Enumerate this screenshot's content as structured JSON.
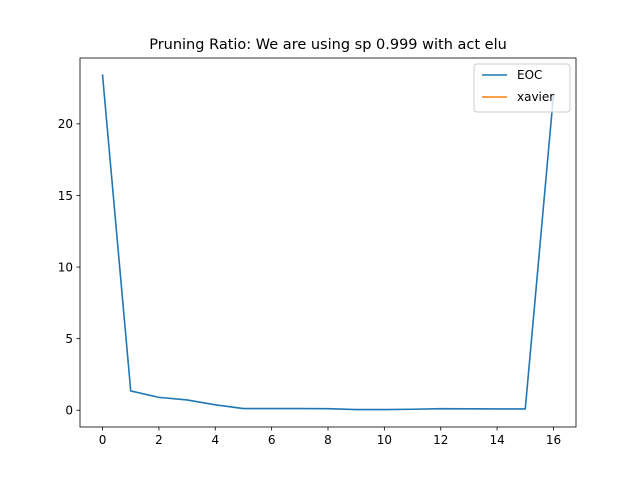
{
  "chart_data": {
    "type": "line",
    "title": "Pruning Ratio: We are using sp 0.999 with act elu",
    "xlabel": "",
    "ylabel": "",
    "xlim": [
      -0.8,
      16.8
    ],
    "ylim": [
      -1.17,
      24.6
    ],
    "xticks": [
      0,
      2,
      4,
      6,
      8,
      10,
      12,
      14,
      16
    ],
    "yticks": [
      0,
      5,
      10,
      15,
      20
    ],
    "grid": false,
    "legend_position": "upper right",
    "series": [
      {
        "name": "EOC",
        "color": "#1f77b4",
        "x": [
          0,
          1,
          2,
          3,
          4,
          5,
          6,
          7,
          8,
          9,
          10,
          11,
          12,
          13,
          14,
          15,
          16
        ],
        "y": [
          23.4,
          1.35,
          0.9,
          0.72,
          0.38,
          0.12,
          0.12,
          0.12,
          0.11,
          0.05,
          0.05,
          0.07,
          0.11,
          0.1,
          0.09,
          0.09,
          22.0
        ]
      },
      {
        "name": "xavier",
        "color": "#ff7f0e",
        "x": [],
        "y": []
      }
    ]
  }
}
